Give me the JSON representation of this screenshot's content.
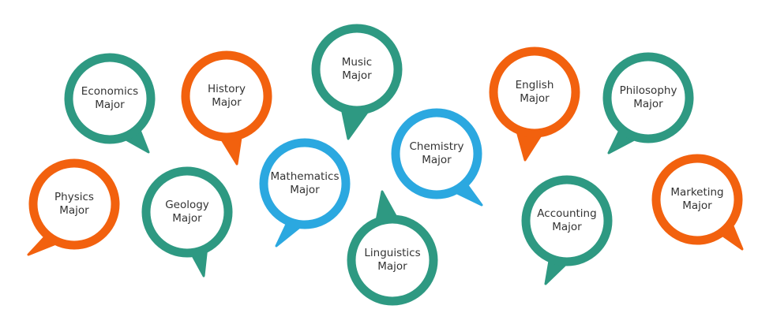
{
  "colors": {
    "teal": "#2e9982",
    "orange": "#f2610e",
    "blue": "#2ba8e0"
  },
  "bubbles": [
    {
      "id": "economics",
      "line1": "Economics",
      "line2": "Major",
      "color": "teal"
    },
    {
      "id": "history",
      "line1": "History",
      "line2": "Major",
      "color": "orange"
    },
    {
      "id": "music",
      "line1": "Music",
      "line2": "Major",
      "color": "teal"
    },
    {
      "id": "english",
      "line1": "English",
      "line2": "Major",
      "color": "orange"
    },
    {
      "id": "philosophy",
      "line1": "Philosophy",
      "line2": "Major",
      "color": "teal"
    },
    {
      "id": "physics",
      "line1": "Physics",
      "line2": "Major",
      "color": "orange"
    },
    {
      "id": "geology",
      "line1": "Geology",
      "line2": "Major",
      "color": "teal"
    },
    {
      "id": "mathematics",
      "line1": "Mathematics",
      "line2": "Major",
      "color": "blue"
    },
    {
      "id": "chemistry",
      "line1": "Chemistry",
      "line2": "Major",
      "color": "blue"
    },
    {
      "id": "linguistics",
      "line1": "Linguistics",
      "line2": "Major",
      "color": "teal"
    },
    {
      "id": "accounting",
      "line1": "Accounting",
      "line2": "Major",
      "color": "teal"
    },
    {
      "id": "marketing",
      "line1": "Marketing",
      "line2": "Major",
      "color": "orange"
    }
  ]
}
